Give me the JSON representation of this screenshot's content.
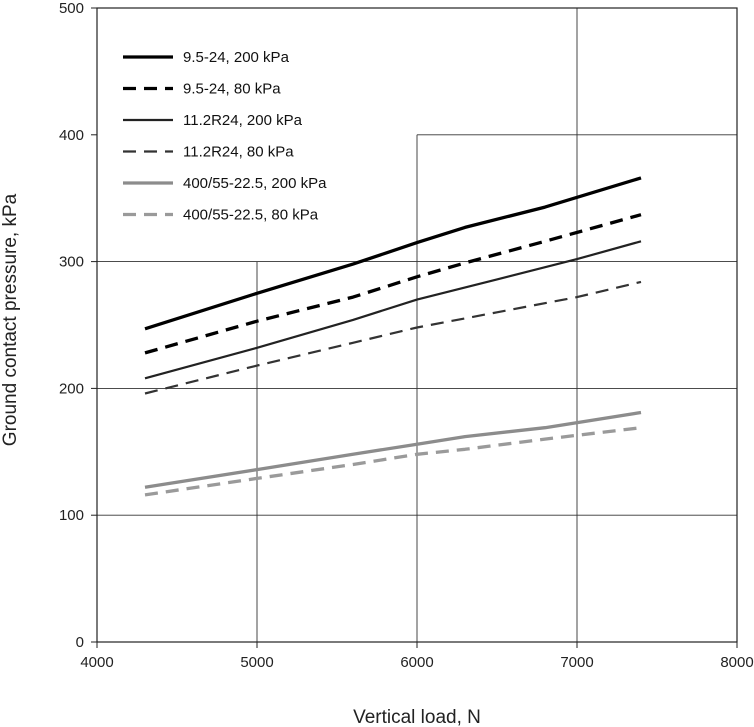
{
  "chart_data": {
    "type": "line",
    "xlabel": "Vertical load, N",
    "ylabel": "Ground contact pressure, kPa",
    "xlim": [
      4000,
      8000
    ],
    "ylim": [
      0,
      500
    ],
    "xticks": [
      "4000",
      "5000",
      "6000",
      "7000",
      "8000"
    ],
    "yticks": [
      "0",
      "100",
      "200",
      "300",
      "400",
      "500"
    ],
    "grid": "partial",
    "legend_position": "top-left",
    "series": [
      {
        "name": "9.5-24, 200 kPa",
        "color": "#000000",
        "dash": "solid",
        "weight": "heavy",
        "x": [
          4300,
          5000,
          5600,
          6000,
          6300,
          6800,
          7400
        ],
        "y": [
          247,
          275,
          298,
          315,
          327,
          343,
          366
        ]
      },
      {
        "name": "9.5-24, 80 kPa",
        "color": "#000000",
        "dash": "dashed",
        "weight": "heavy",
        "x": [
          4300,
          5000,
          5600,
          6000,
          6300,
          6800,
          7400
        ],
        "y": [
          228,
          253,
          272,
          288,
          299,
          316,
          337
        ]
      },
      {
        "name": "11.2R24, 200 kPa",
        "color": "#222222",
        "dash": "solid",
        "weight": "medium",
        "x": [
          4300,
          5000,
          5600,
          6000,
          6500,
          7000,
          7400
        ],
        "y": [
          208,
          232,
          254,
          270,
          286,
          302,
          316
        ]
      },
      {
        "name": "11.2R24, 80 kPa",
        "color": "#333333",
        "dash": "dashed",
        "weight": "medium",
        "x": [
          4300,
          5000,
          5600,
          6000,
          6500,
          7000,
          7400
        ],
        "y": [
          196,
          218,
          236,
          248,
          260,
          272,
          284
        ]
      },
      {
        "name": "400/55-22.5, 200 kPa",
        "color": "#8c8c8c",
        "dash": "solid",
        "weight": "heavy",
        "x": [
          4300,
          5000,
          5600,
          6000,
          6300,
          6800,
          7400
        ],
        "y": [
          122,
          136,
          148,
          156,
          162,
          169,
          181
        ]
      },
      {
        "name": "400/55-22.5, 80 kPa",
        "color": "#9a9a9a",
        "dash": "dashed",
        "weight": "heavy",
        "x": [
          4300,
          5000,
          5600,
          6000,
          6300,
          6800,
          7400
        ],
        "y": [
          116,
          129,
          140,
          148,
          152,
          160,
          169
        ]
      }
    ]
  }
}
